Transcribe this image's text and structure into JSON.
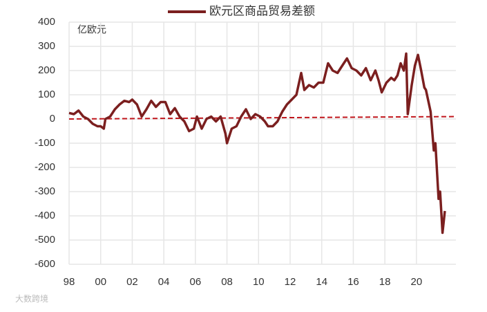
{
  "chart_data": {
    "type": "line",
    "unit_label": "亿欧元",
    "watermark": "大数跨境",
    "xlim": [
      1998,
      2022.5
    ],
    "xticks": [
      {
        "value": 1998,
        "label": "98"
      },
      {
        "value": 2000,
        "label": "00"
      },
      {
        "value": 2002,
        "label": "02"
      },
      {
        "value": 2004,
        "label": "04"
      },
      {
        "value": 2006,
        "label": "06"
      },
      {
        "value": 2008,
        "label": "08"
      },
      {
        "value": 2010,
        "label": "10"
      },
      {
        "value": 2012,
        "label": "12"
      },
      {
        "value": 2014,
        "label": "14"
      },
      {
        "value": 2016,
        "label": "16"
      },
      {
        "value": 2018,
        "label": "18"
      },
      {
        "value": 2020,
        "label": "20"
      }
    ],
    "ylim": [
      -600,
      400
    ],
    "yticks": [
      -600,
      -500,
      -400,
      -300,
      -200,
      -100,
      0,
      100,
      200,
      300,
      400
    ],
    "grid": true,
    "legend": "top",
    "x": [
      1998.0,
      1998.3,
      1998.6,
      1998.9,
      1999.2,
      1999.5,
      1999.8,
      2000.0,
      2000.2,
      2000.3,
      2000.6,
      2000.9,
      2001.2,
      2001.5,
      2001.8,
      2002.0,
      2002.3,
      2002.6,
      2002.9,
      2003.2,
      2003.5,
      2003.8,
      2004.1,
      2004.4,
      2004.7,
      2005.0,
      2005.3,
      2005.6,
      2005.9,
      2006.1,
      2006.4,
      2006.7,
      2007.0,
      2007.3,
      2007.6,
      2007.9,
      2008.0,
      2008.3,
      2008.6,
      2008.9,
      2009.2,
      2009.5,
      2009.8,
      2010.1,
      2010.4,
      2010.6,
      2010.9,
      2011.2,
      2011.5,
      2011.8,
      2012.1,
      2012.4,
      2012.7,
      2012.9,
      2013.2,
      2013.5,
      2013.8,
      2014.1,
      2014.4,
      2014.7,
      2015.0,
      2015.3,
      2015.6,
      2015.9,
      2016.2,
      2016.5,
      2016.8,
      2017.1,
      2017.4,
      2017.6,
      2017.8,
      2018.1,
      2018.4,
      2018.6,
      2018.8,
      2019.0,
      2019.2,
      2019.35,
      2019.45,
      2019.7,
      2019.9,
      2020.1,
      2020.3,
      2020.5,
      2020.6,
      2020.9,
      2021.1,
      2021.2,
      2021.4,
      2021.5,
      2021.65,
      2021.8
    ],
    "series": [
      {
        "name": "欧元区商品贸易差额",
        "color": "#7b1f1f",
        "values": [
          25,
          20,
          35,
          10,
          0,
          -20,
          -30,
          -30,
          -40,
          0,
          10,
          40,
          60,
          75,
          70,
          80,
          60,
          10,
          40,
          75,
          50,
          70,
          70,
          20,
          45,
          10,
          -10,
          -50,
          -40,
          10,
          -40,
          0,
          10,
          -10,
          10,
          -60,
          -100,
          -40,
          -30,
          10,
          40,
          0,
          20,
          10,
          -10,
          -30,
          -30,
          -10,
          30,
          60,
          80,
          100,
          190,
          120,
          140,
          130,
          150,
          150,
          230,
          200,
          190,
          220,
          250,
          210,
          200,
          180,
          210,
          160,
          200,
          160,
          110,
          150,
          170,
          160,
          180,
          230,
          200,
          270,
          20,
          140,
          220,
          265,
          200,
          130,
          120,
          30,
          -130,
          -100,
          -330,
          -300,
          -470,
          -380
        ]
      }
    ],
    "trend_line": {
      "x": [
        1998,
        2022.5
      ],
      "values": [
        0,
        10
      ],
      "color": "#c0151b"
    }
  }
}
